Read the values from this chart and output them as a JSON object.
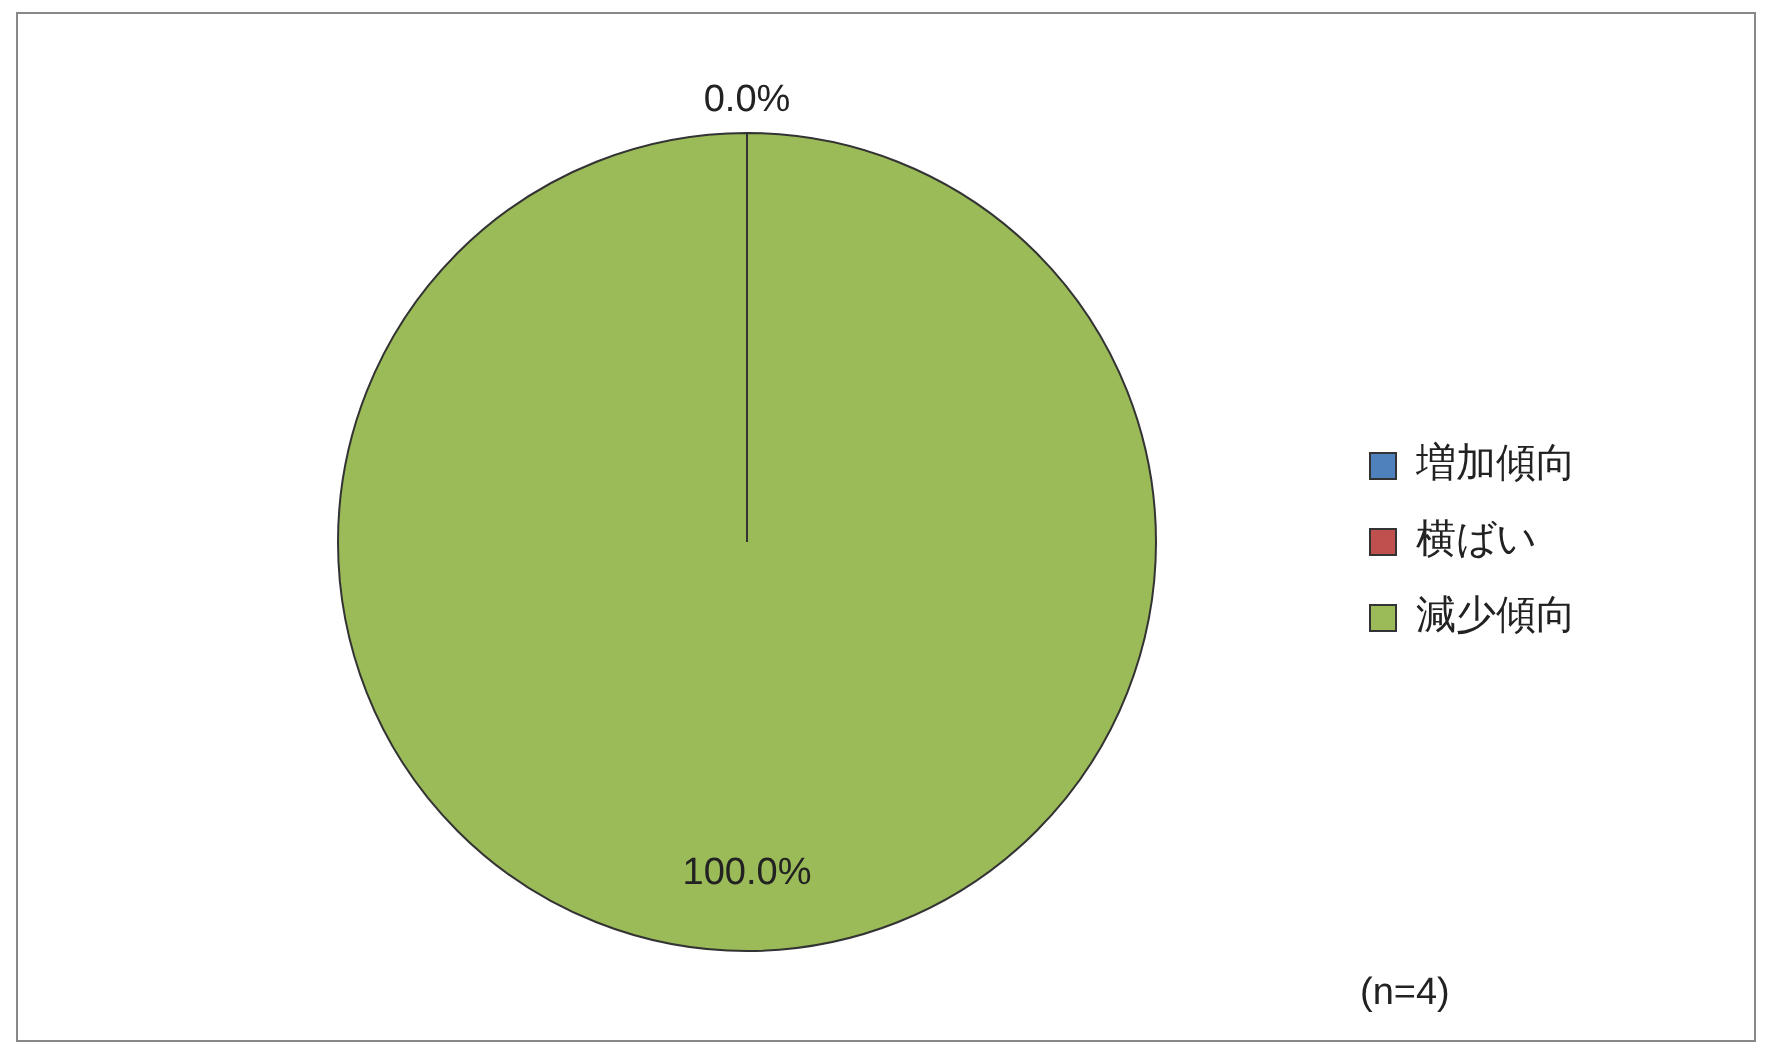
{
  "chart_data": {
    "type": "pie",
    "categories": [
      "増加傾向",
      "横ばい",
      "減少傾向"
    ],
    "values": [
      0,
      0,
      100
    ],
    "colors": [
      "#4f81bd",
      "#c0504d",
      "#9bbb59"
    ],
    "value_labels": [
      "0.0%",
      null,
      "100.0%"
    ],
    "legend": "right",
    "annotations": [
      "(n=4)"
    ]
  }
}
